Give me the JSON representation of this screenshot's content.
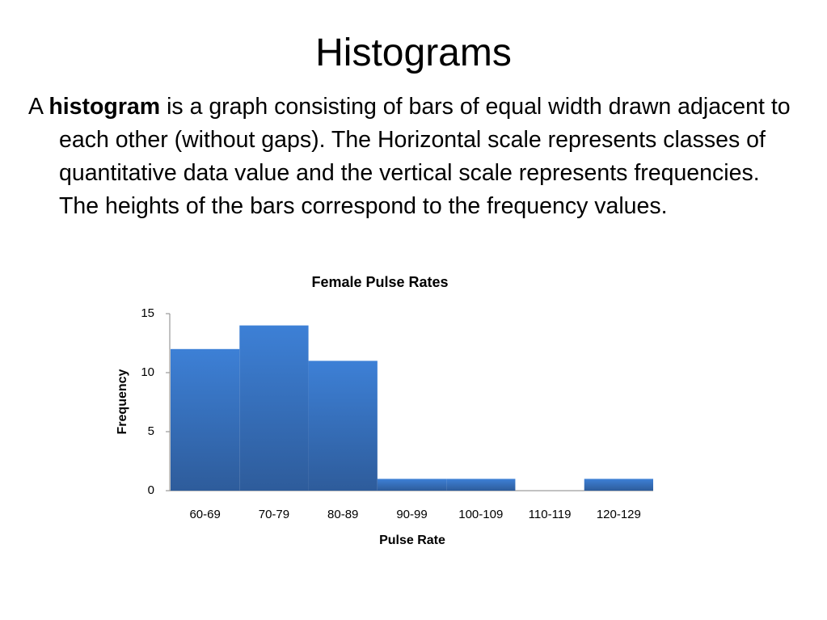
{
  "title": "Histograms",
  "paragraph": [
    "A",
    "histogram",
    "is a graph consisting of bars of equal width drawn adjacent to each other (without gaps). The Horizontal scale represents classes of quantitative data value and the vertical scale represents frequencies. The heights of the bars correspond to the frequency values."
  ],
  "chart_data": {
    "type": "bar",
    "title": "Female Pulse Rates",
    "x_label": "Pulse Rate",
    "y_label": "Frequency",
    "categories": [
      "60-69",
      "70-79",
      "80-89",
      "90-99",
      "100-109",
      "110-119",
      "120-129"
    ],
    "values": [
      12,
      14,
      11,
      1,
      1,
      0,
      1
    ],
    "color": "#3a76c4",
    "ylim": [
      0,
      15
    ],
    "yticks": [
      0,
      5,
      10,
      15
    ],
    "grid": false
  }
}
